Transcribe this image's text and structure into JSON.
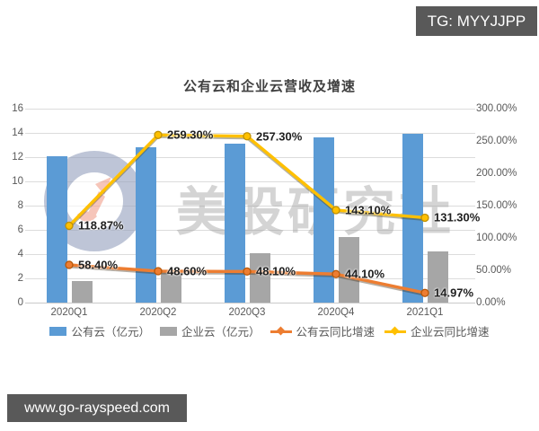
{
  "badges": {
    "tg": "TG: MYYJJPP",
    "url": "www.go-rayspeed.com"
  },
  "watermark": {
    "text": "美股研究社",
    "ring_color": "#97A3BF",
    "arrow_color": "#F2A38F"
  },
  "chart_data": {
    "type": "combo-bar-line",
    "title": "公有云和企业云营收及增速",
    "categories": [
      "2020Q1",
      "2020Q2",
      "2020Q3",
      "2020Q4",
      "2021Q1"
    ],
    "bar_series": [
      {
        "name": "公有云（亿元）",
        "color": "#5B9BD5",
        "values": [
          12.1,
          12.8,
          13.1,
          13.6,
          13.9
        ]
      },
      {
        "name": "企业云（亿元）",
        "color": "#A6A6A6",
        "values": [
          1.8,
          2.5,
          4.1,
          5.4,
          4.2
        ]
      }
    ],
    "line_series": [
      {
        "name": "公有云同比增速",
        "color": "#ED7D31",
        "marker_edge": "#B65708",
        "shadow": "rgba(70,50,25,0.40)",
        "values": [
          58.4,
          48.6,
          48.1,
          44.1,
          14.97
        ],
        "labels": [
          "58.40%",
          "48.60%",
          "48.10%",
          "44.10%",
          "14.97%"
        ]
      },
      {
        "name": "企业云同比增速",
        "color": "#FFC000",
        "marker_edge": "#BF9000",
        "shadow": "rgba(75,65,20,0.40)",
        "values": [
          118.87,
          259.3,
          257.3,
          143.1,
          131.3
        ],
        "labels": [
          "118.87%",
          "259.30%",
          "257.30%",
          "143.10%",
          "131.30%"
        ]
      }
    ],
    "left_axis": {
      "min": 0,
      "max": 16,
      "ticks": [
        "0",
        "2",
        "4",
        "6",
        "8",
        "10",
        "12",
        "14",
        "16"
      ]
    },
    "right_axis": {
      "min": 0,
      "max": 300,
      "ticks": [
        "0.00%",
        "50.00%",
        "100.00%",
        "150.00%",
        "200.00%",
        "250.00%",
        "300.00%"
      ]
    },
    "grid": true,
    "legend_position": "bottom"
  }
}
